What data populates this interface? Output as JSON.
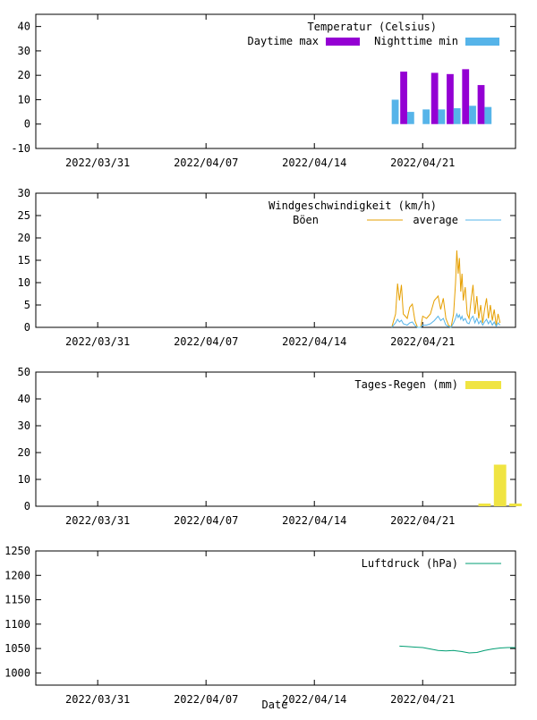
{
  "chart_data": [
    {
      "type": "bar",
      "x_date_start": "2022/03/27",
      "x_date_end": "2022/04/27",
      "x_ticks": [
        "2022/03/31",
        "2022/04/07",
        "2022/04/14",
        "2022/04/21"
      ],
      "ylim": [
        -10,
        45
      ],
      "y_ticks": [
        -10,
        0,
        10,
        20,
        30,
        40
      ],
      "legend_title": "Temperatur (Celsius)",
      "legend_position": "top-right",
      "series": [
        {
          "name": "Daytime max",
          "color": "#9400d3",
          "points": [
            {
              "date": "2022/04/20",
              "value": 21.5
            },
            {
              "date": "2022/04/22",
              "value": 21
            },
            {
              "date": "2022/04/23",
              "value": 20.5
            },
            {
              "date": "2022/04/24",
              "value": 22.5
            },
            {
              "date": "2022/04/25",
              "value": 16
            }
          ]
        },
        {
          "name": "Nighttime min",
          "color": "#56b4e9",
          "points": [
            {
              "date": "2022/04/19",
              "value": 10
            },
            {
              "date": "2022/04/20",
              "value": 5
            },
            {
              "date": "2022/04/21",
              "value": 6
            },
            {
              "date": "2022/04/22",
              "value": 6
            },
            {
              "date": "2022/04/23",
              "value": 6.5
            },
            {
              "date": "2022/04/24",
              "value": 7.5
            },
            {
              "date": "2022/04/25",
              "value": 7
            }
          ]
        }
      ]
    },
    {
      "type": "line",
      "x_date_start": "2022/03/27",
      "x_date_end": "2022/04/27",
      "x_ticks": [
        "2022/03/31",
        "2022/04/07",
        "2022/04/14",
        "2022/04/21"
      ],
      "ylim": [
        0,
        30
      ],
      "y_ticks": [
        0,
        5,
        10,
        15,
        20,
        25,
        30
      ],
      "legend_title": "Windgeschwindigkeit (km/h)",
      "legend_position": "top-right",
      "series": [
        {
          "name": "Böen",
          "color": "#e69f00",
          "points": [
            [
              "2022/04/19 00:00",
              0
            ],
            [
              "2022/04/19 06:00",
              3
            ],
            [
              "2022/04/19 09:00",
              9.8
            ],
            [
              "2022/04/19 12:00",
              6
            ],
            [
              "2022/04/19 15:00",
              9.5
            ],
            [
              "2022/04/19 18:00",
              3
            ],
            [
              "2022/04/20 00:00",
              2
            ],
            [
              "2022/04/20 04:00",
              4.5
            ],
            [
              "2022/04/20 08:00",
              5.2
            ],
            [
              "2022/04/20 12:00",
              1.5
            ],
            [
              "2022/04/20 16:00",
              0
            ],
            [
              "2022/04/20 21:00",
              0
            ],
            [
              "2022/04/21 00:00",
              2.5
            ],
            [
              "2022/04/21 06:00",
              2
            ],
            [
              "2022/04/21 12:00",
              3
            ],
            [
              "2022/04/21 18:00",
              6
            ],
            [
              "2022/04/22 00:00",
              7
            ],
            [
              "2022/04/22 04:00",
              4
            ],
            [
              "2022/04/22 08:00",
              6.5
            ],
            [
              "2022/04/22 12:00",
              2
            ],
            [
              "2022/04/22 16:00",
              0.5
            ],
            [
              "2022/04/22 20:00",
              0
            ],
            [
              "2022/04/23 00:00",
              3
            ],
            [
              "2022/04/23 03:00",
              10
            ],
            [
              "2022/04/23 05:00",
              17.2
            ],
            [
              "2022/04/23 07:00",
              12
            ],
            [
              "2022/04/23 09:00",
              15.5
            ],
            [
              "2022/04/23 11:00",
              8
            ],
            [
              "2022/04/23 13:00",
              12
            ],
            [
              "2022/04/23 15:00",
              6
            ],
            [
              "2022/04/23 18:00",
              9
            ],
            [
              "2022/04/23 21:00",
              3
            ],
            [
              "2022/04/24 00:00",
              2
            ],
            [
              "2022/04/24 03:00",
              6
            ],
            [
              "2022/04/24 06:00",
              9.5
            ],
            [
              "2022/04/24 09:00",
              3
            ],
            [
              "2022/04/24 12:00",
              7
            ],
            [
              "2022/04/24 15:00",
              2
            ],
            [
              "2022/04/24 18:00",
              5
            ],
            [
              "2022/04/24 21:00",
              1
            ],
            [
              "2022/04/25 00:00",
              4
            ],
            [
              "2022/04/25 03:00",
              6.5
            ],
            [
              "2022/04/25 06:00",
              2
            ],
            [
              "2022/04/25 09:00",
              5
            ],
            [
              "2022/04/25 12:00",
              1.5
            ],
            [
              "2022/04/25 15:00",
              4
            ],
            [
              "2022/04/25 18:00",
              0.5
            ],
            [
              "2022/04/25 21:00",
              3
            ],
            [
              "2022/04/26 00:00",
              1
            ]
          ]
        },
        {
          "name": "average",
          "color": "#56b4e9",
          "points": [
            [
              "2022/04/19 00:00",
              0
            ],
            [
              "2022/04/19 06:00",
              1
            ],
            [
              "2022/04/19 09:00",
              1.8
            ],
            [
              "2022/04/19 12:00",
              1.2
            ],
            [
              "2022/04/19 15:00",
              1.6
            ],
            [
              "2022/04/19 18:00",
              0.8
            ],
            [
              "2022/04/20 00:00",
              0.5
            ],
            [
              "2022/04/20 04:00",
              1
            ],
            [
              "2022/04/20 08:00",
              1.2
            ],
            [
              "2022/04/20 12:00",
              0.4
            ],
            [
              "2022/04/20 16:00",
              0
            ],
            [
              "2022/04/20 21:00",
              0
            ],
            [
              "2022/04/21 00:00",
              0.5
            ],
            [
              "2022/04/21 06:00",
              0.5
            ],
            [
              "2022/04/21 12:00",
              0.8
            ],
            [
              "2022/04/21 18:00",
              1.5
            ],
            [
              "2022/04/22 00:00",
              2.5
            ],
            [
              "2022/04/22 04:00",
              1.5
            ],
            [
              "2022/04/22 08:00",
              2
            ],
            [
              "2022/04/22 12:00",
              0.5
            ],
            [
              "2022/04/22 16:00",
              0.2
            ],
            [
              "2022/04/22 20:00",
              0
            ],
            [
              "2022/04/23 00:00",
              1
            ],
            [
              "2022/04/23 03:00",
              2
            ],
            [
              "2022/04/23 05:00",
              3
            ],
            [
              "2022/04/23 07:00",
              2.2
            ],
            [
              "2022/04/23 09:00",
              2.8
            ],
            [
              "2022/04/23 11:00",
              1.8
            ],
            [
              "2022/04/23 13:00",
              2.5
            ],
            [
              "2022/04/23 15:00",
              1.5
            ],
            [
              "2022/04/23 18:00",
              2
            ],
            [
              "2022/04/23 21:00",
              1
            ],
            [
              "2022/04/24 00:00",
              0.8
            ],
            [
              "2022/04/24 03:00",
              2
            ],
            [
              "2022/04/24 06:00",
              2.5
            ],
            [
              "2022/04/24 09:00",
              1
            ],
            [
              "2022/04/24 12:00",
              2
            ],
            [
              "2022/04/24 15:00",
              0.8
            ],
            [
              "2022/04/24 18:00",
              1.5
            ],
            [
              "2022/04/24 21:00",
              0.5
            ],
            [
              "2022/04/25 00:00",
              1.2
            ],
            [
              "2022/04/25 03:00",
              1.8
            ],
            [
              "2022/04/25 06:00",
              0.8
            ],
            [
              "2022/04/25 09:00",
              1.5
            ],
            [
              "2022/04/25 12:00",
              0.5
            ],
            [
              "2022/04/25 15:00",
              1.2
            ],
            [
              "2022/04/25 18:00",
              0.2
            ],
            [
              "2022/04/25 21:00",
              1
            ],
            [
              "2022/04/26 00:00",
              0.5
            ]
          ]
        }
      ]
    },
    {
      "type": "bar",
      "x_date_start": "2022/03/27",
      "x_date_end": "2022/04/27",
      "x_ticks": [
        "2022/03/31",
        "2022/04/07",
        "2022/04/14",
        "2022/04/21"
      ],
      "ylim": [
        0,
        50
      ],
      "y_ticks": [
        0,
        10,
        20,
        30,
        40,
        50
      ],
      "legend_position": "top-right",
      "series": [
        {
          "name": "Tages-Regen (mm)",
          "color": "#f0e442",
          "points": [
            {
              "date": "2022/04/25",
              "value": 1
            },
            {
              "date": "2022/04/26",
              "value": 15.5
            },
            {
              "date": "2022/04/27",
              "value": 1
            }
          ]
        }
      ]
    },
    {
      "type": "line",
      "x_date_start": "2022/03/27",
      "x_date_end": "2022/04/27",
      "x_ticks": [
        "2022/03/31",
        "2022/04/07",
        "2022/04/14",
        "2022/04/21"
      ],
      "ylim": [
        975,
        1250
      ],
      "y_ticks": [
        1000,
        1050,
        1100,
        1150,
        1200,
        1250
      ],
      "xlabel": "Date",
      "legend_position": "top-right",
      "series": [
        {
          "name": "Luftdruck (hPa)",
          "color": "#009e73",
          "points": [
            [
              "2022/04/19 12:00",
              1055
            ],
            [
              "2022/04/20 00:00",
              1054
            ],
            [
              "2022/04/20 12:00",
              1053
            ],
            [
              "2022/04/21 00:00",
              1052
            ],
            [
              "2022/04/21 12:00",
              1049
            ],
            [
              "2022/04/22 00:00",
              1046
            ],
            [
              "2022/04/22 12:00",
              1045
            ],
            [
              "2022/04/23 00:00",
              1046
            ],
            [
              "2022/04/23 12:00",
              1044
            ],
            [
              "2022/04/24 00:00",
              1041
            ],
            [
              "2022/04/24 12:00",
              1042
            ],
            [
              "2022/04/25 00:00",
              1046
            ],
            [
              "2022/04/25 12:00",
              1049
            ],
            [
              "2022/04/26 00:00",
              1051
            ],
            [
              "2022/04/26 12:00",
              1052
            ],
            [
              "2022/04/27 00:00",
              1052
            ]
          ]
        }
      ]
    }
  ]
}
